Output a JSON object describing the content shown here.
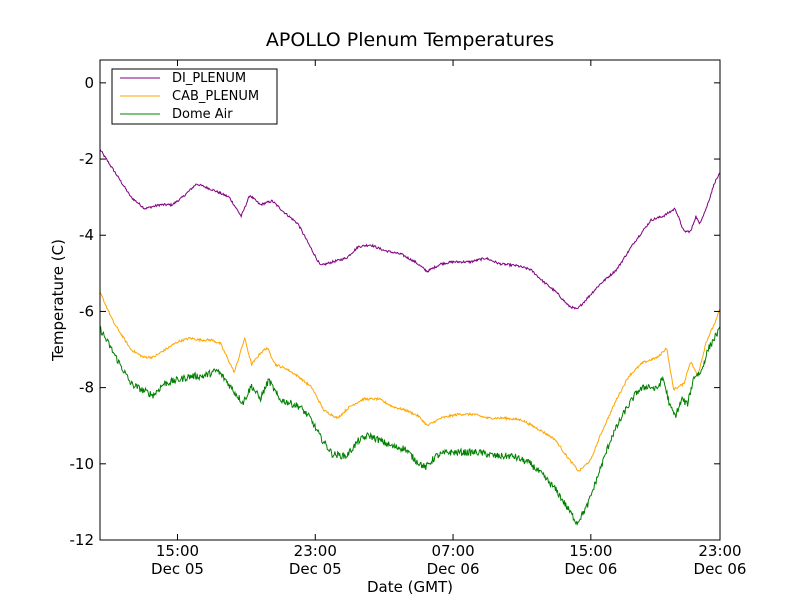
{
  "chart_data": {
    "type": "line",
    "title": "APOLLO Plenum Temperatures",
    "xlabel": "Date (GMT)",
    "ylabel": "Temperature (C)",
    "xlim": [
      10.5,
      46.5
    ],
    "ylim": [
      -12,
      0.6
    ],
    "grid": false,
    "legend_position": "top-left",
    "x_ticks": [
      {
        "x": 15,
        "time": "15:00",
        "date": "Dec 05"
      },
      {
        "x": 23,
        "time": "23:00",
        "date": "Dec 05"
      },
      {
        "x": 31,
        "time": "07:00",
        "date": "Dec 06"
      },
      {
        "x": 39,
        "time": "15:00",
        "date": "Dec 06"
      },
      {
        "x": 47,
        "time": "23:00",
        "date": "Dec 06"
      }
    ],
    "y_ticks": [
      0,
      -2,
      -4,
      -6,
      -8,
      -10,
      -12
    ],
    "series": [
      {
        "name": "DI_PLENUM",
        "color": "#800080",
        "noise": 0.03,
        "points": [
          [
            10.5,
            -1.75
          ],
          [
            11.3,
            -2.3
          ],
          [
            12.3,
            -3.0
          ],
          [
            13.1,
            -3.3
          ],
          [
            14.0,
            -3.2
          ],
          [
            14.7,
            -3.2
          ],
          [
            15.3,
            -3.0
          ],
          [
            16.1,
            -2.65
          ],
          [
            17.0,
            -2.8
          ],
          [
            18.0,
            -3.0
          ],
          [
            18.7,
            -3.5
          ],
          [
            19.2,
            -2.95
          ],
          [
            19.8,
            -3.2
          ],
          [
            20.5,
            -3.1
          ],
          [
            21.2,
            -3.4
          ],
          [
            22.0,
            -3.7
          ],
          [
            22.7,
            -4.3
          ],
          [
            23.3,
            -4.8
          ],
          [
            24.0,
            -4.7
          ],
          [
            24.8,
            -4.6
          ],
          [
            25.5,
            -4.3
          ],
          [
            26.2,
            -4.25
          ],
          [
            27.0,
            -4.4
          ],
          [
            28.0,
            -4.5
          ],
          [
            28.8,
            -4.7
          ],
          [
            29.5,
            -4.95
          ],
          [
            30.3,
            -4.75
          ],
          [
            31.0,
            -4.7
          ],
          [
            32.0,
            -4.7
          ],
          [
            32.9,
            -4.6
          ],
          [
            33.7,
            -4.75
          ],
          [
            34.7,
            -4.8
          ],
          [
            35.5,
            -4.9
          ],
          [
            36.2,
            -5.2
          ],
          [
            37.0,
            -5.5
          ],
          [
            37.7,
            -5.85
          ],
          [
            38.2,
            -5.95
          ],
          [
            38.9,
            -5.6
          ],
          [
            39.5,
            -5.3
          ],
          [
            40.5,
            -4.9
          ],
          [
            41.5,
            -4.2
          ],
          [
            42.5,
            -3.6
          ],
          [
            43.2,
            -3.5
          ],
          [
            43.9,
            -3.3
          ],
          [
            44.4,
            -3.9
          ],
          [
            44.8,
            -3.9
          ],
          [
            45.1,
            -3.5
          ],
          [
            45.3,
            -3.7
          ],
          [
            45.7,
            -3.3
          ],
          [
            46.2,
            -2.6
          ],
          [
            46.8,
            -2.15
          ]
        ]
      },
      {
        "name": "CAB_PLENUM",
        "color": "#ffa500",
        "noise": 0.03,
        "points": [
          [
            10.5,
            -5.5
          ],
          [
            11.3,
            -6.3
          ],
          [
            12.3,
            -7.0
          ],
          [
            13.0,
            -7.2
          ],
          [
            13.6,
            -7.2
          ],
          [
            14.3,
            -7.0
          ],
          [
            15.0,
            -6.8
          ],
          [
            15.7,
            -6.7
          ],
          [
            16.3,
            -6.75
          ],
          [
            17.0,
            -6.75
          ],
          [
            17.5,
            -6.85
          ],
          [
            18.3,
            -7.6
          ],
          [
            18.9,
            -6.7
          ],
          [
            19.3,
            -7.4
          ],
          [
            19.8,
            -7.1
          ],
          [
            20.2,
            -6.95
          ],
          [
            20.7,
            -7.4
          ],
          [
            21.3,
            -7.5
          ],
          [
            22.0,
            -7.7
          ],
          [
            22.8,
            -8.0
          ],
          [
            23.5,
            -8.6
          ],
          [
            24.3,
            -8.8
          ],
          [
            25.0,
            -8.5
          ],
          [
            25.8,
            -8.3
          ],
          [
            26.7,
            -8.3
          ],
          [
            27.5,
            -8.5
          ],
          [
            28.3,
            -8.6
          ],
          [
            29.0,
            -8.75
          ],
          [
            29.5,
            -9.0
          ],
          [
            30.3,
            -8.8
          ],
          [
            31.3,
            -8.7
          ],
          [
            32.2,
            -8.7
          ],
          [
            33.0,
            -8.8
          ],
          [
            34.0,
            -8.8
          ],
          [
            35.0,
            -8.85
          ],
          [
            36.0,
            -9.1
          ],
          [
            36.9,
            -9.35
          ],
          [
            37.6,
            -9.8
          ],
          [
            38.3,
            -10.2
          ],
          [
            39.0,
            -9.9
          ],
          [
            39.6,
            -9.2
          ],
          [
            40.5,
            -8.3
          ],
          [
            41.2,
            -7.7
          ],
          [
            42.0,
            -7.35
          ],
          [
            42.9,
            -7.2
          ],
          [
            43.4,
            -6.95
          ],
          [
            43.8,
            -8.05
          ],
          [
            44.4,
            -7.9
          ],
          [
            44.8,
            -7.3
          ],
          [
            45.2,
            -7.7
          ],
          [
            45.7,
            -6.8
          ],
          [
            46.3,
            -6.2
          ],
          [
            46.8,
            -5.5
          ]
        ]
      },
      {
        "name": "Dome Air",
        "color": "#008000",
        "noise": 0.09,
        "points": [
          [
            10.5,
            -6.45
          ],
          [
            11.3,
            -7.1
          ],
          [
            12.3,
            -7.9
          ],
          [
            12.9,
            -8.05
          ],
          [
            13.6,
            -8.2
          ],
          [
            14.2,
            -7.9
          ],
          [
            15.0,
            -7.8
          ],
          [
            15.8,
            -7.7
          ],
          [
            16.5,
            -7.7
          ],
          [
            17.3,
            -7.55
          ],
          [
            17.8,
            -7.8
          ],
          [
            18.2,
            -8.05
          ],
          [
            18.8,
            -8.4
          ],
          [
            19.3,
            -7.95
          ],
          [
            19.8,
            -8.3
          ],
          [
            20.3,
            -7.8
          ],
          [
            20.9,
            -8.3
          ],
          [
            21.5,
            -8.4
          ],
          [
            22.1,
            -8.5
          ],
          [
            22.7,
            -8.8
          ],
          [
            23.3,
            -9.3
          ],
          [
            24.0,
            -9.75
          ],
          [
            24.8,
            -9.8
          ],
          [
            25.5,
            -9.4
          ],
          [
            26.1,
            -9.25
          ],
          [
            26.8,
            -9.4
          ],
          [
            27.5,
            -9.55
          ],
          [
            28.2,
            -9.6
          ],
          [
            28.8,
            -9.9
          ],
          [
            29.4,
            -10.1
          ],
          [
            30.0,
            -9.8
          ],
          [
            30.7,
            -9.7
          ],
          [
            31.5,
            -9.7
          ],
          [
            32.5,
            -9.7
          ],
          [
            33.5,
            -9.8
          ],
          [
            34.5,
            -9.8
          ],
          [
            35.5,
            -10.0
          ],
          [
            36.2,
            -10.3
          ],
          [
            37.0,
            -10.7
          ],
          [
            37.7,
            -11.2
          ],
          [
            38.2,
            -11.55
          ],
          [
            38.8,
            -11.1
          ],
          [
            39.5,
            -10.2
          ],
          [
            40.2,
            -9.3
          ],
          [
            41.0,
            -8.6
          ],
          [
            41.7,
            -8.1
          ],
          [
            42.3,
            -7.95
          ],
          [
            42.8,
            -8.05
          ],
          [
            43.2,
            -7.75
          ],
          [
            43.6,
            -8.5
          ],
          [
            43.9,
            -8.75
          ],
          [
            44.3,
            -8.3
          ],
          [
            44.6,
            -8.45
          ],
          [
            45.0,
            -7.7
          ],
          [
            45.4,
            -7.6
          ],
          [
            45.8,
            -7.0
          ],
          [
            46.3,
            -6.6
          ],
          [
            46.8,
            -6.3
          ]
        ]
      }
    ]
  }
}
